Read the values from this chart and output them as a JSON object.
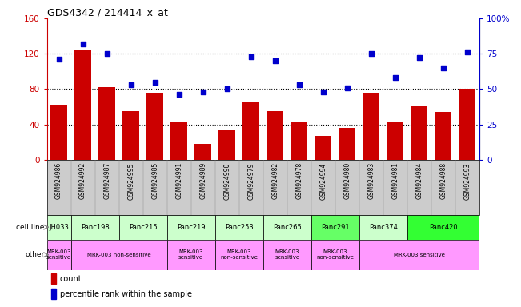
{
  "title": "GDS4342 / 214414_x_at",
  "samples": [
    "GSM924986",
    "GSM924992",
    "GSM924987",
    "GSM924995",
    "GSM924985",
    "GSM924991",
    "GSM924989",
    "GSM924990",
    "GSM924979",
    "GSM924982",
    "GSM924978",
    "GSM924994",
    "GSM924980",
    "GSM924983",
    "GSM924981",
    "GSM924984",
    "GSM924988",
    "GSM924993"
  ],
  "counts": [
    62,
    125,
    82,
    55,
    76,
    42,
    18,
    34,
    65,
    55,
    42,
    27,
    36,
    76,
    42,
    60,
    54,
    80
  ],
  "percentiles": [
    71,
    82,
    75,
    53,
    55,
    46,
    48,
    50,
    73,
    70,
    53,
    48,
    51,
    75,
    58,
    72,
    65,
    76
  ],
  "ylim_left": [
    0,
    160
  ],
  "ylim_right": [
    0,
    100
  ],
  "yticks_left": [
    0,
    40,
    80,
    120,
    160
  ],
  "yticks_right": [
    0,
    25,
    50,
    75,
    100
  ],
  "bar_color": "#CC0000",
  "dot_color": "#0000CC",
  "cell_lines": [
    {
      "label": "JH033",
      "start": 0,
      "end": 1,
      "color": "#ccffcc"
    },
    {
      "label": "Panc198",
      "start": 1,
      "end": 3,
      "color": "#ccffcc"
    },
    {
      "label": "Panc215",
      "start": 3,
      "end": 5,
      "color": "#ccffcc"
    },
    {
      "label": "Panc219",
      "start": 5,
      "end": 7,
      "color": "#ccffcc"
    },
    {
      "label": "Panc253",
      "start": 7,
      "end": 9,
      "color": "#ccffcc"
    },
    {
      "label": "Panc265",
      "start": 9,
      "end": 11,
      "color": "#ccffcc"
    },
    {
      "label": "Panc291",
      "start": 11,
      "end": 13,
      "color": "#66ff66"
    },
    {
      "label": "Panc374",
      "start": 13,
      "end": 15,
      "color": "#ccffcc"
    },
    {
      "label": "Panc420",
      "start": 15,
      "end": 18,
      "color": "#33ff33"
    }
  ],
  "other_row": [
    {
      "label": "MRK-003\nsensitive",
      "start": 0,
      "end": 1,
      "color": "#ff99ff"
    },
    {
      "label": "MRK-003 non-sensitive",
      "start": 1,
      "end": 5,
      "color": "#ff99ff"
    },
    {
      "label": "MRK-003\nsensitive",
      "start": 5,
      "end": 7,
      "color": "#ff99ff"
    },
    {
      "label": "MRK-003\nnon-sensitive",
      "start": 7,
      "end": 9,
      "color": "#ff99ff"
    },
    {
      "label": "MRK-003\nsensitive",
      "start": 9,
      "end": 11,
      "color": "#ff99ff"
    },
    {
      "label": "MRK-003\nnon-sensitive",
      "start": 11,
      "end": 13,
      "color": "#ff99ff"
    },
    {
      "label": "MRK-003 sensitive",
      "start": 13,
      "end": 18,
      "color": "#ff99ff"
    }
  ],
  "xtick_bg_color": "#cccccc",
  "legend_count_color": "#CC0000",
  "legend_dot_color": "#0000CC",
  "left_label_color": "#888888"
}
